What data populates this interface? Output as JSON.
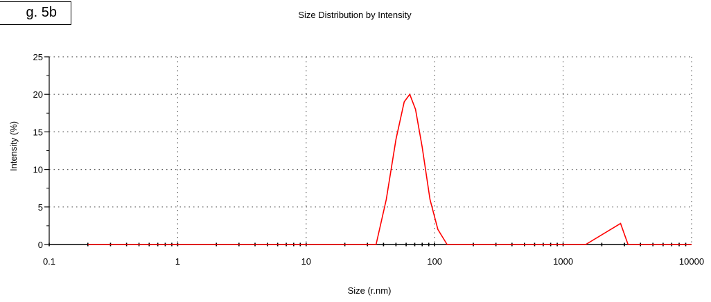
{
  "figure_label": "g. 5b",
  "chart_data": {
    "type": "line",
    "title": "Size Distribution by Intensity",
    "xlabel": "Size (r.nm)",
    "ylabel": "Intensity (%)",
    "xscale": "log",
    "xlim": [
      0.1,
      10000
    ],
    "ylim": [
      0,
      25
    ],
    "xticks": [
      0.1,
      1,
      10,
      100,
      1000,
      10000
    ],
    "xtick_labels": [
      "0.1",
      "1",
      "10",
      "100",
      "1000",
      "10000"
    ],
    "yticks": [
      0,
      5,
      10,
      15,
      20,
      25
    ],
    "ytick_labels": [
      "0",
      "5",
      "10",
      "15",
      "20",
      "25"
    ],
    "grid": true,
    "series": [
      {
        "color": "#ff0000",
        "x": [
          0.2,
          35,
          42,
          50,
          58,
          64,
          71,
          80,
          92,
          106,
          125,
          1500,
          2800,
          3200,
          10000
        ],
        "y": [
          0,
          0,
          6,
          14,
          19,
          20,
          18,
          13,
          6,
          2,
          0,
          0,
          2.8,
          0,
          0
        ]
      }
    ]
  }
}
